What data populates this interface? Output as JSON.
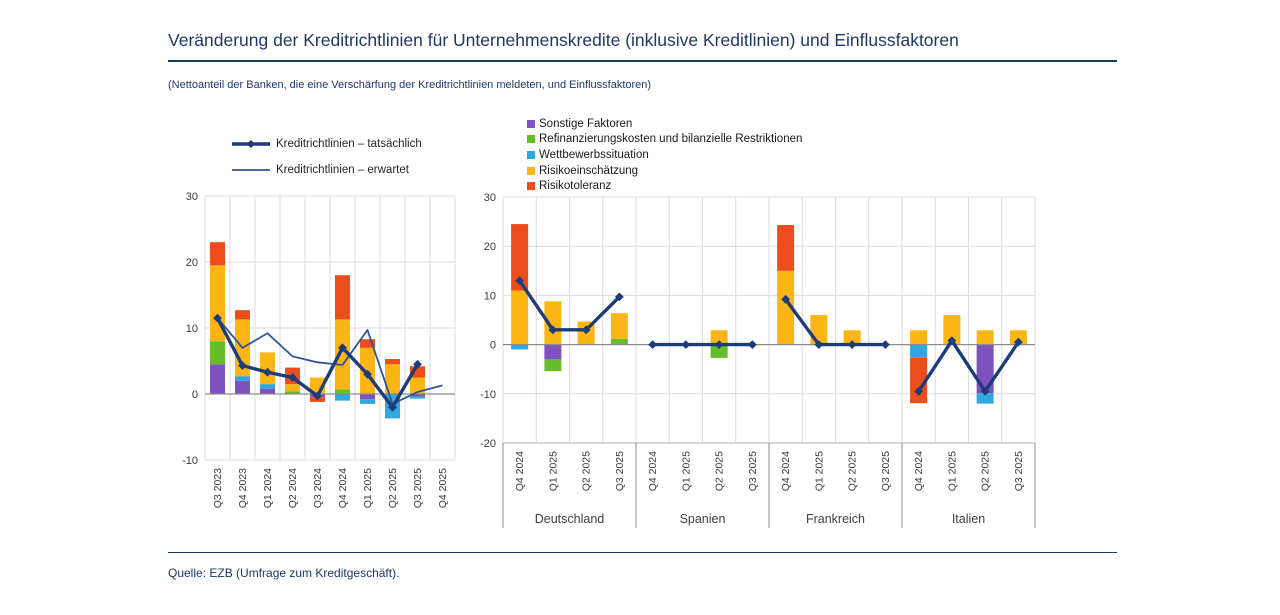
{
  "header": {
    "title": "Veränderung der Kreditrichtlinien für Unternehmenskredite (inklusive Kreditlinien) und Einflussfaktoren",
    "subtitle": "(Nettoanteil der Banken, die eine Verschärfung der Kreditrichtlinien meldeten, und Einflussfaktoren)"
  },
  "footer": {
    "source": "Quelle: EZB (Umfrage zum Kreditgeschäft)."
  },
  "colors": {
    "navy": "#1F3864",
    "line_actual": "#1E3C78",
    "line_expected": "#2F5597",
    "grid": "#DCDCDC",
    "zero_line": "#8C8C8C",
    "axis_text": "#3A3A3A",
    "plot_edge": "#B3B3B3"
  },
  "chart_data": [
    {
      "type": "bar",
      "subtype": "stacked-bars-with-lines",
      "title": "",
      "categories": [
        "Q3 2023",
        "Q4 2023",
        "Q1 2024",
        "Q2 2024",
        "Q3 2024",
        "Q4 2024",
        "Q1 2025",
        "Q2 2025",
        "Q3 2025",
        "Q4 2025"
      ],
      "ylim": [
        -10,
        30
      ],
      "yticks": [
        30,
        20,
        10,
        0,
        -10
      ],
      "grid": true,
      "bar_series": [
        {
          "name": "Sonstige Faktoren",
          "color": "#7D52BE",
          "values": [
            4.5,
            2.0,
            0.8,
            0,
            -0.5,
            0,
            -0.8,
            0,
            -0.4,
            0
          ]
        },
        {
          "name": "Refinanzierungskosten und bilanzielle Restriktionen",
          "color": "#65BD29",
          "values": [
            3.5,
            0,
            0,
            0.4,
            0,
            0.7,
            0,
            0,
            0,
            0
          ]
        },
        {
          "name": "Wettbewerbssituation",
          "color": "#2FA8E0",
          "values": [
            0,
            0.7,
            0.7,
            0,
            0,
            -1.0,
            -0.7,
            -3.7,
            -0.3,
            0
          ]
        },
        {
          "name": "Risikoeinschätzung",
          "color": "#FBB515",
          "values": [
            11.5,
            8.6,
            4.8,
            1.1,
            2.5,
            10.6,
            7.0,
            4.5,
            2.5,
            0
          ]
        },
        {
          "name": "Risikotoleranz",
          "color": "#EC4D1C",
          "values": [
            3.5,
            1.4,
            0,
            2.5,
            -0.7,
            6.7,
            1.3,
            0.8,
            1.7,
            0
          ]
        }
      ],
      "line_series": [
        {
          "name": "Kreditrichtlinien – tatsächlich",
          "style": "thick",
          "markers": true,
          "values": [
            11.5,
            4.3,
            3.3,
            2.5,
            -0.3,
            7.0,
            3.0,
            -2.0,
            4.5,
            null
          ]
        },
        {
          "name": "Kreditrichtlinien – erwartet",
          "style": "thin",
          "markers": false,
          "values": [
            11.5,
            7.0,
            9.2,
            5.7,
            4.8,
            4.4,
            9.7,
            -1.5,
            0.3,
            1.3
          ]
        }
      ]
    },
    {
      "type": "bar",
      "subtype": "grouped-stacked-bars-with-line",
      "title": "",
      "groups": [
        "Deutschland",
        "Spanien",
        "Frankreich",
        "Italien"
      ],
      "categories_per_group": [
        "Q4 2024",
        "Q1 2025",
        "Q2 2025",
        "Q3 2025"
      ],
      "ylim": [
        -20,
        30
      ],
      "yticks": [
        30,
        20,
        10,
        0,
        -10,
        -20
      ],
      "grid": true,
      "bar_series": [
        {
          "name": "Sonstige Faktoren",
          "color": "#7D52BE",
          "values": [
            [
              0,
              -3.0,
              0,
              0
            ],
            [
              0,
              0,
              0,
              0
            ],
            [
              0,
              0,
              0,
              0
            ],
            [
              0,
              0,
              -9.9,
              0
            ]
          ]
        },
        {
          "name": "Refinanzierungskosten und bilanzielle Restriktionen",
          "color": "#65BD29",
          "values": [
            [
              0,
              -2.4,
              0,
              1.2
            ],
            [
              0,
              0,
              -2.7,
              0
            ],
            [
              0,
              0,
              0,
              0
            ],
            [
              0,
              0,
              0,
              0
            ]
          ]
        },
        {
          "name": "Wettbewerbssituation",
          "color": "#2FA8E0",
          "values": [
            [
              -1.0,
              0,
              0,
              0
            ],
            [
              0,
              0,
              0,
              0
            ],
            [
              0,
              0,
              0,
              0
            ],
            [
              -2.7,
              0,
              -2.1,
              0
            ]
          ]
        },
        {
          "name": "Risikoeinschätzung",
          "color": "#FBB515",
          "values": [
            [
              11.0,
              8.8,
              4.7,
              5.2
            ],
            [
              0,
              0,
              2.9,
              0
            ],
            [
              15.0,
              6.0,
              2.9,
              0
            ],
            [
              2.9,
              6.0,
              2.9,
              2.9
            ]
          ]
        },
        {
          "name": "Risikotoleranz",
          "color": "#EC4D1C",
          "values": [
            [
              13.5,
              0,
              0,
              0
            ],
            [
              0,
              0,
              0,
              0
            ],
            [
              9.3,
              0,
              0,
              0
            ],
            [
              -9.2,
              0,
              0,
              0
            ]
          ]
        }
      ],
      "line_series": [
        {
          "name": "Kreditrichtlinien – tatsächlich",
          "style": "thick",
          "markers": true,
          "values": [
            [
              13,
              3,
              3,
              9.7
            ],
            [
              0,
              0,
              0,
              0
            ],
            [
              9.2,
              0,
              0,
              0
            ],
            [
              -9.5,
              0.8,
              -9.5,
              0.5
            ]
          ]
        }
      ]
    }
  ]
}
